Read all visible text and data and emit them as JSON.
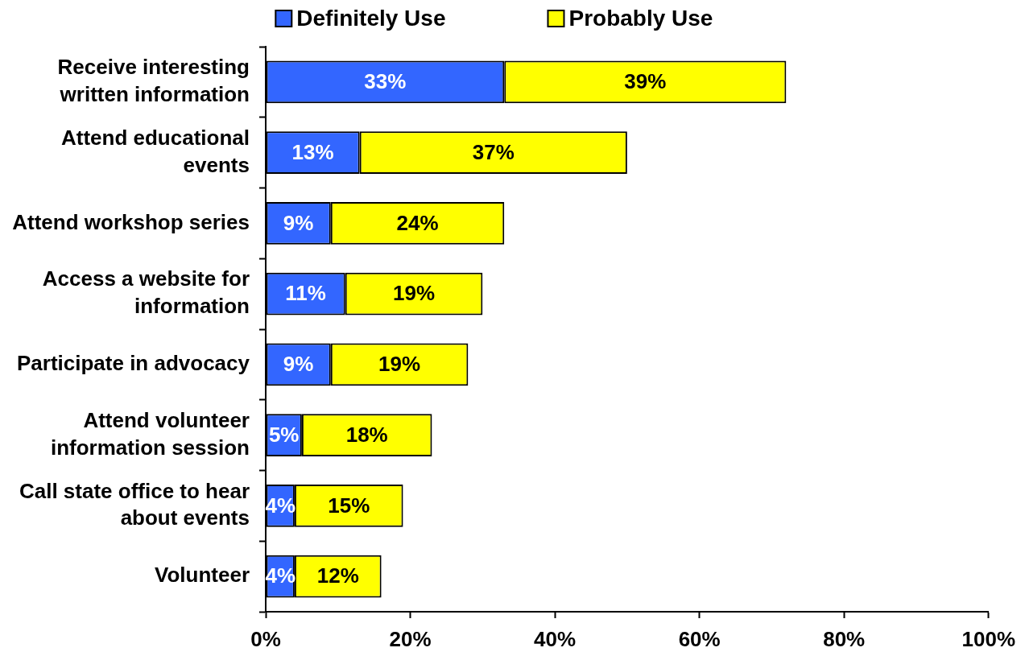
{
  "chart_data": {
    "type": "bar",
    "orientation": "horizontal",
    "stacked": true,
    "categories": [
      "Receive interesting written information",
      "Attend educational events",
      "Attend workshop series",
      "Access a website for information",
      "Participate in advocacy",
      "Attend volunteer information session",
      "Call state office to hear about events",
      "Volunteer"
    ],
    "series": [
      {
        "name": "Definitely Use",
        "color": "#3366ff",
        "values": [
          33,
          13,
          9,
          11,
          9,
          5,
          4,
          4
        ],
        "value_labels": [
          "33%",
          "13%",
          "9%",
          "11%",
          "9%",
          "5%",
          "4%",
          "4%"
        ]
      },
      {
        "name": "Probably Use",
        "color": "#ffff00",
        "values": [
          39,
          37,
          24,
          19,
          19,
          18,
          15,
          12
        ],
        "value_labels": [
          "39%",
          "37%",
          "24%",
          "19%",
          "19%",
          "18%",
          "15%",
          "12%"
        ]
      }
    ],
    "xlim": [
      0,
      100
    ],
    "xticks": [
      {
        "value": 0,
        "label": "0%"
      },
      {
        "value": 20,
        "label": "20%"
      },
      {
        "value": 40,
        "label": "40%"
      },
      {
        "value": 60,
        "label": "60%"
      },
      {
        "value": 80,
        "label": "80%"
      },
      {
        "value": 100,
        "label": "100%"
      }
    ],
    "legend": "top",
    "grid": false
  }
}
